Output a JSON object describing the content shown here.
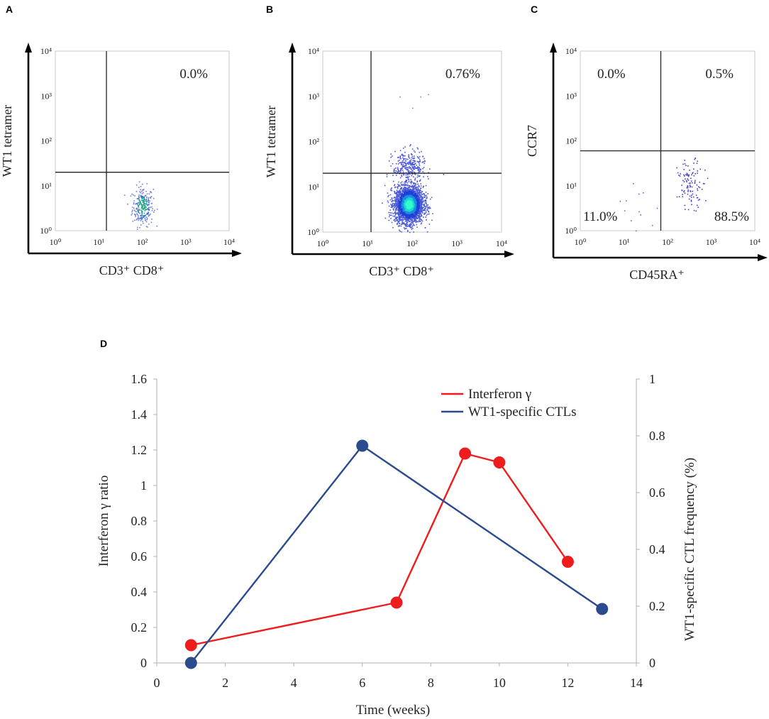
{
  "panels": {
    "a": {
      "letter": "A",
      "ylabel": "WT1 tetramer",
      "xlabel": "CD3⁺ CD8⁺",
      "ur_pct": "0.0%"
    },
    "b": {
      "letter": "B",
      "ylabel": "WT1 tetramer",
      "xlabel": "CD3⁺ CD8⁺",
      "ur_pct": "0.76%"
    },
    "c": {
      "letter": "C",
      "ylabel": "CCR7",
      "xlabel": "CD45RA⁺",
      "ul_pct": "0.0%",
      "ur_pct": "0.5%",
      "ll_pct": "11.0%",
      "lr_pct": "88.5%"
    },
    "d": {
      "letter": "D"
    }
  },
  "flow_ticks": [
    "10⁰",
    "10¹",
    "10²",
    "10³",
    "10⁴"
  ],
  "colors": {
    "interferon": "#ee1c1c",
    "ctl": "#2a4b8d"
  },
  "chart_data": [
    {
      "type": "scatter",
      "panel": "A",
      "title": "",
      "xlabel": "CD3⁺ CD8⁺",
      "ylabel": "WT1 tetramer",
      "x_scale": "log",
      "y_scale": "log",
      "xlim": [
        1,
        10000
      ],
      "ylim": [
        1,
        10000
      ],
      "quadrant_gates": {
        "x": 15,
        "y": 20
      },
      "annotations": [
        "0.0%"
      ]
    },
    {
      "type": "scatter",
      "panel": "B",
      "title": "",
      "xlabel": "CD3⁺ CD8⁺",
      "ylabel": "WT1 tetramer",
      "x_scale": "log",
      "y_scale": "log",
      "xlim": [
        1,
        10000
      ],
      "ylim": [
        1,
        10000
      ],
      "quadrant_gates": {
        "x": 12,
        "y": 20
      },
      "annotations": [
        "0.76%"
      ]
    },
    {
      "type": "scatter",
      "panel": "C",
      "title": "",
      "xlabel": "CD45RA⁺",
      "ylabel": "CCR7",
      "x_scale": "log",
      "y_scale": "log",
      "xlim": [
        1,
        10000
      ],
      "ylim": [
        1,
        10000
      ],
      "quadrant_gates": {
        "x": 70,
        "y": 60
      },
      "annotations": [
        "0.0%",
        "0.5%",
        "11.0%",
        "88.5%"
      ]
    },
    {
      "type": "line",
      "panel": "D",
      "title": "",
      "xlabel": "Time  (weeks)",
      "ylabel": "Interferon  γ ratio",
      "y2label": "WT1-specific  CTL frequency   (%)",
      "xlim": [
        0,
        14
      ],
      "ylim": [
        0,
        1.6
      ],
      "y2lim": [
        0,
        1
      ],
      "x_ticks": [
        "0",
        "2",
        "4",
        "6",
        "8",
        "10",
        "12",
        "14"
      ],
      "y_ticks": [
        "0",
        "0.2",
        "0.4",
        "0.6",
        "0.8",
        "1",
        "1.2",
        "1.4",
        "1.6"
      ],
      "y2_ticks": [
        "0",
        "0.2",
        "0.4",
        "0.6",
        "0.8",
        "1"
      ],
      "legend_position": "top-right",
      "series": [
        {
          "name": "Interferon  γ",
          "axis": "left",
          "x": [
            1,
            7,
            9,
            10,
            12
          ],
          "y": [
            0.1,
            0.34,
            1.18,
            1.13,
            0.57
          ]
        },
        {
          "name": "WT1-specific  CTLs",
          "axis": "right",
          "x": [
            1,
            6,
            13
          ],
          "y": [
            0.0,
            0.765,
            0.19
          ]
        }
      ]
    }
  ]
}
